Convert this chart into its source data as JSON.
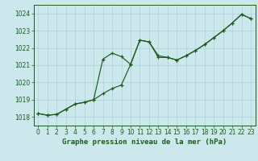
{
  "line1_x": [
    0,
    1,
    2,
    3,
    4,
    5,
    6,
    7,
    8,
    9,
    10,
    11,
    12,
    13,
    14,
    15,
    16,
    17,
    18,
    19,
    20,
    21,
    22,
    23
  ],
  "line1_y": [
    1018.2,
    1018.1,
    1018.15,
    1018.45,
    1018.75,
    1018.85,
    1019.0,
    1019.35,
    1019.65,
    1019.85,
    1021.05,
    1022.45,
    1022.35,
    1021.55,
    1021.45,
    1021.3,
    1021.55,
    1021.85,
    1022.2,
    1022.6,
    1023.0,
    1023.45,
    1023.95,
    1023.7
  ],
  "line2_x": [
    0,
    1,
    2,
    3,
    4,
    5,
    6,
    7,
    8,
    9,
    10,
    11,
    12,
    13,
    14,
    15,
    16,
    17,
    18,
    19,
    20,
    21,
    22,
    23
  ],
  "line2_y": [
    1018.2,
    1018.1,
    1018.15,
    1018.45,
    1018.75,
    1018.85,
    1019.0,
    1021.35,
    1021.7,
    1021.5,
    1021.05,
    1022.45,
    1022.35,
    1021.45,
    1021.45,
    1021.3,
    1021.55,
    1021.85,
    1022.2,
    1022.6,
    1023.0,
    1023.45,
    1023.95,
    1023.7
  ],
  "line_color": "#1a5c1a",
  "bg_color": "#cce8ec",
  "grid_major_color": "#b0d4d8",
  "grid_minor_color": "#c4dfe3",
  "xlabel": "Graphe pression niveau de la mer (hPa)",
  "ylim": [
    1017.5,
    1024.5
  ],
  "xlim": [
    -0.5,
    23.5
  ],
  "yticks": [
    1018,
    1019,
    1020,
    1021,
    1022,
    1023,
    1024
  ],
  "xticks": [
    0,
    1,
    2,
    3,
    4,
    5,
    6,
    7,
    8,
    9,
    10,
    11,
    12,
    13,
    14,
    15,
    16,
    17,
    18,
    19,
    20,
    21,
    22,
    23
  ],
  "tick_fontsize": 5.5,
  "xlabel_fontsize": 6.5
}
